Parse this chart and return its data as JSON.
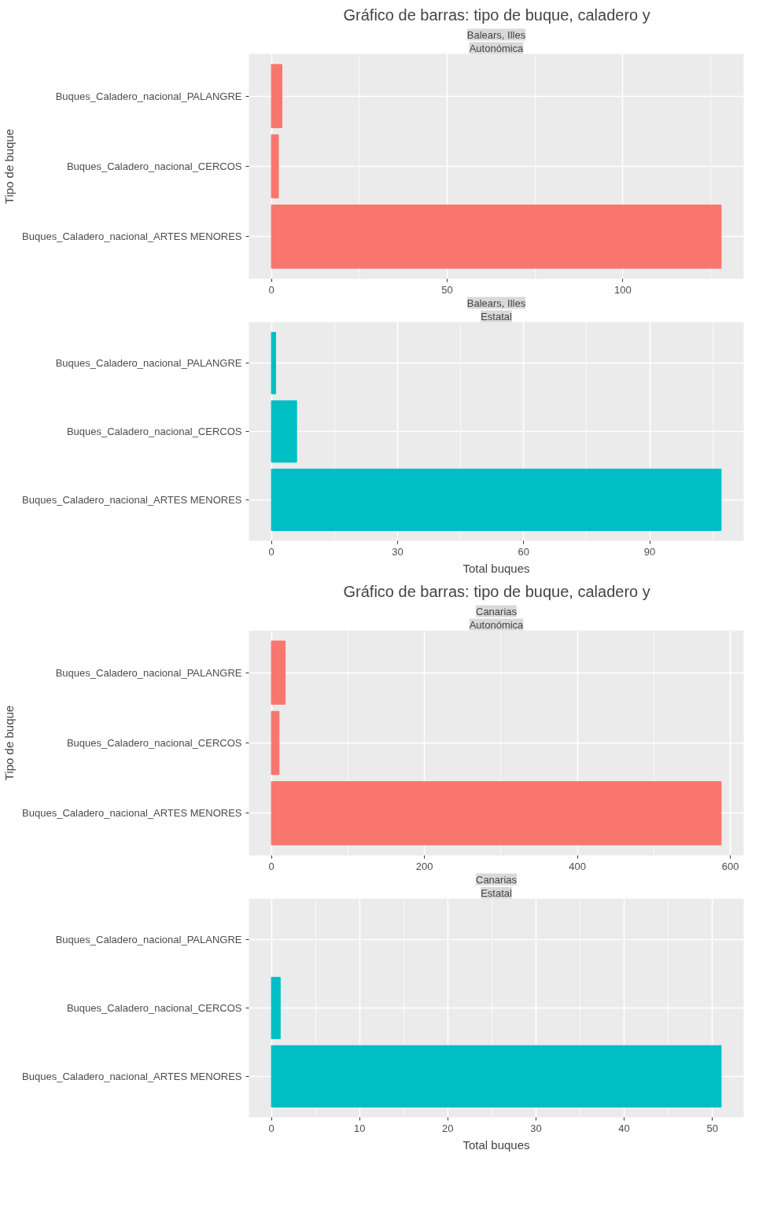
{
  "chart_data": [
    {
      "type": "bar",
      "orientation": "horizontal",
      "title": "Gráfico de barras: tipo de buque, caladero y",
      "subtitle": "Balears, Illes",
      "annotations": [
        "Autonómica"
      ],
      "ylabel": "Tipo de buque",
      "categories": [
        "Buques_Caladero_nacional_PALANGRE",
        "Buques_Caladero_nacional_CERCOS",
        "Buques_Caladero_nacional_ARTES MENORES"
      ],
      "values": [
        3,
        2,
        128
      ],
      "color": "#f8766d",
      "xlim": [
        -6.4,
        134.4
      ],
      "xticks": [
        0,
        50,
        100
      ],
      "grid": true
    },
    {
      "type": "bar",
      "orientation": "horizontal",
      "subtitle": "Balears, Illes",
      "annotations": [
        "Estatal"
      ],
      "xlabel": "Total buques",
      "categories": [
        "Buques_Caladero_nacional_PALANGRE",
        "Buques_Caladero_nacional_CERCOS",
        "Buques_Caladero_nacional_ARTES MENORES"
      ],
      "values": [
        1,
        6,
        107
      ],
      "color": "#00bfc4",
      "xlim": [
        -5.35,
        112.35
      ],
      "xticks": [
        0,
        30,
        60,
        90
      ],
      "grid": true
    },
    {
      "type": "bar",
      "orientation": "horizontal",
      "title": "Gráfico de barras: tipo de buque, caladero y",
      "subtitle": "Canarias",
      "annotations": [
        "Autonómica"
      ],
      "ylabel": "Tipo de buque",
      "categories": [
        "Buques_Caladero_nacional_PALANGRE",
        "Buques_Caladero_nacional_CERCOS",
        "Buques_Caladero_nacional_ARTES MENORES"
      ],
      "values": [
        18,
        10,
        588
      ],
      "color": "#f8766d",
      "xlim": [
        -29.4,
        617.4
      ],
      "xticks": [
        0,
        200,
        400,
        600
      ],
      "grid": true
    },
    {
      "type": "bar",
      "orientation": "horizontal",
      "subtitle": "Canarias",
      "annotations": [
        "Estatal"
      ],
      "xlabel": "Total buques",
      "categories": [
        "Buques_Caladero_nacional_PALANGRE",
        "Buques_Caladero_nacional_CERCOS",
        "Buques_Caladero_nacional_ARTES MENORES"
      ],
      "values": [
        null,
        1,
        51
      ],
      "color": "#00bfc4",
      "xlim": [
        -2.55,
        53.55
      ],
      "xticks": [
        0,
        10,
        20,
        30,
        40,
        50
      ],
      "grid": true
    }
  ]
}
